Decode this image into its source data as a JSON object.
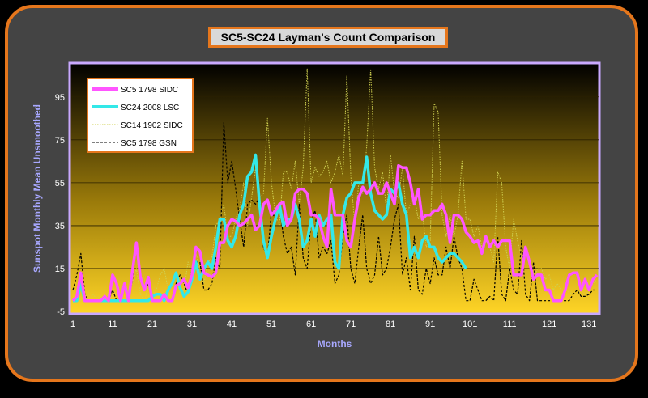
{
  "chart_data": {
    "type": "line",
    "title": "SC5-SC24 Layman's Count Comparison",
    "xlabel": "Months",
    "ylabel": "Sunspot Monthly Mean Unsmoothed",
    "xlim": [
      1,
      133
    ],
    "ylim": [
      -5,
      110
    ],
    "xticks": [
      1,
      11,
      21,
      31,
      41,
      51,
      61,
      71,
      81,
      91,
      101,
      111,
      121,
      131
    ],
    "yticks": [
      -5,
      15,
      35,
      55,
      75,
      95
    ],
    "grid": "horizontal",
    "legend_position": "top-left",
    "series": [
      {
        "name": "SC5   1798 SIDC",
        "color": "#ff55ff",
        "style": "solid",
        "values": [
          0,
          2,
          13,
          0,
          0,
          0,
          0,
          0,
          2,
          0,
          12,
          8,
          0,
          8,
          0,
          14,
          27,
          11,
          5,
          11,
          0,
          0,
          0,
          3,
          0,
          0,
          7,
          8,
          10,
          6,
          12,
          25,
          23,
          13,
          12,
          11,
          13,
          27,
          27,
          35,
          38,
          37,
          35,
          36,
          38,
          40,
          33,
          35,
          45,
          47,
          40,
          42,
          45,
          46,
          35,
          38,
          50,
          52,
          52,
          50,
          40,
          40,
          38,
          30,
          25,
          52,
          40,
          40,
          40,
          28,
          25,
          38,
          48,
          53,
          50,
          52,
          55,
          50,
          50,
          55,
          50,
          45,
          63,
          62,
          62,
          55,
          45,
          52,
          38,
          40,
          40,
          42,
          42,
          45,
          40,
          27,
          40,
          40,
          38,
          32,
          30,
          27,
          28,
          22,
          30,
          25,
          28,
          25,
          28,
          28,
          28,
          12,
          12,
          12,
          25,
          18,
          10,
          12,
          12,
          5,
          5,
          0,
          0,
          0,
          5,
          12,
          13,
          13,
          5,
          10,
          5,
          10,
          12
        ]
      },
      {
        "name": "SC24 2008 LSC",
        "color": "#33e8e8",
        "style": "solid",
        "values": [
          0,
          0,
          8,
          0,
          0,
          0,
          0,
          0,
          0,
          0,
          0,
          0,
          0,
          0,
          0,
          0,
          0,
          0,
          0,
          0,
          2,
          3,
          3,
          0,
          5,
          8,
          13,
          6,
          2,
          4,
          10,
          18,
          10,
          15,
          18,
          15,
          25,
          38,
          38,
          28,
          25,
          30,
          40,
          45,
          58,
          60,
          68,
          45,
          28,
          20,
          30,
          38,
          45,
          35,
          38,
          38,
          45,
          38,
          25,
          28,
          38,
          30,
          40,
          35,
          38,
          40,
          18,
          15,
          40,
          48,
          50,
          55,
          55,
          55,
          67,
          50,
          42,
          40,
          38,
          40,
          52,
          50,
          55,
          45,
          40,
          20,
          25,
          20,
          28,
          30,
          25,
          25,
          20,
          18,
          20,
          22,
          22,
          20,
          18,
          15
        ]
      },
      {
        "name": "SC14  1902 SIDC",
        "color": "#cfd050",
        "style": "dotted",
        "values": [
          0,
          3,
          0,
          2,
          0,
          3,
          1,
          2,
          0,
          3,
          5,
          3,
          1,
          0,
          5,
          8,
          15,
          3,
          0,
          6,
          2,
          5,
          12,
          15,
          5,
          8,
          12,
          3,
          5,
          18,
          12,
          22,
          15,
          8,
          18,
          20,
          35,
          38,
          45,
          30,
          30,
          38,
          43,
          55,
          35,
          48,
          62,
          48,
          50,
          85,
          55,
          40,
          35,
          60,
          60,
          52,
          65,
          45,
          62,
          108,
          55,
          62,
          58,
          60,
          65,
          55,
          60,
          68,
          58,
          105,
          58,
          35,
          55,
          50,
          72,
          108,
          62,
          52,
          60,
          42,
          68,
          50,
          48,
          62,
          40,
          45,
          48,
          38,
          42,
          25,
          28,
          92,
          88,
          40,
          30,
          40,
          30,
          40,
          65,
          38,
          38,
          30,
          35,
          25,
          28,
          25,
          18,
          60,
          55,
          25,
          15,
          38,
          28,
          20,
          25,
          20,
          10,
          15,
          15,
          10,
          12,
          5,
          8,
          5,
          5,
          4,
          3,
          3,
          5,
          2,
          5,
          8,
          10
        ]
      },
      {
        "name": "SC5   1798 GSN",
        "color": "#000000",
        "style": "dashed",
        "values": [
          5,
          12,
          22,
          3,
          0,
          0,
          0,
          0,
          2,
          0,
          5,
          0,
          0,
          0,
          0,
          10,
          27,
          12,
          5,
          8,
          0,
          0,
          0,
          3,
          0,
          0,
          8,
          12,
          8,
          3,
          15,
          18,
          18,
          5,
          5,
          8,
          20,
          15,
          83,
          55,
          65,
          52,
          38,
          25,
          45,
          47,
          45,
          48,
          25,
          20,
          42,
          38,
          45,
          30,
          22,
          25,
          12,
          45,
          20,
          15,
          38,
          42,
          20,
          25,
          22,
          28,
          8,
          12,
          30,
          40,
          15,
          8,
          25,
          40,
          15,
          8,
          12,
          30,
          12,
          15,
          25,
          38,
          45,
          12,
          20,
          5,
          30,
          5,
          3,
          15,
          8,
          20,
          12,
          12,
          25,
          15,
          30,
          20,
          15,
          0,
          0,
          10,
          5,
          0,
          0,
          2,
          0,
          30,
          3,
          0,
          15,
          5,
          3,
          28,
          3,
          0,
          18,
          0,
          0,
          0,
          0,
          0,
          0,
          0,
          0,
          0,
          3,
          5,
          2,
          2,
          3,
          5,
          5
        ]
      }
    ]
  }
}
